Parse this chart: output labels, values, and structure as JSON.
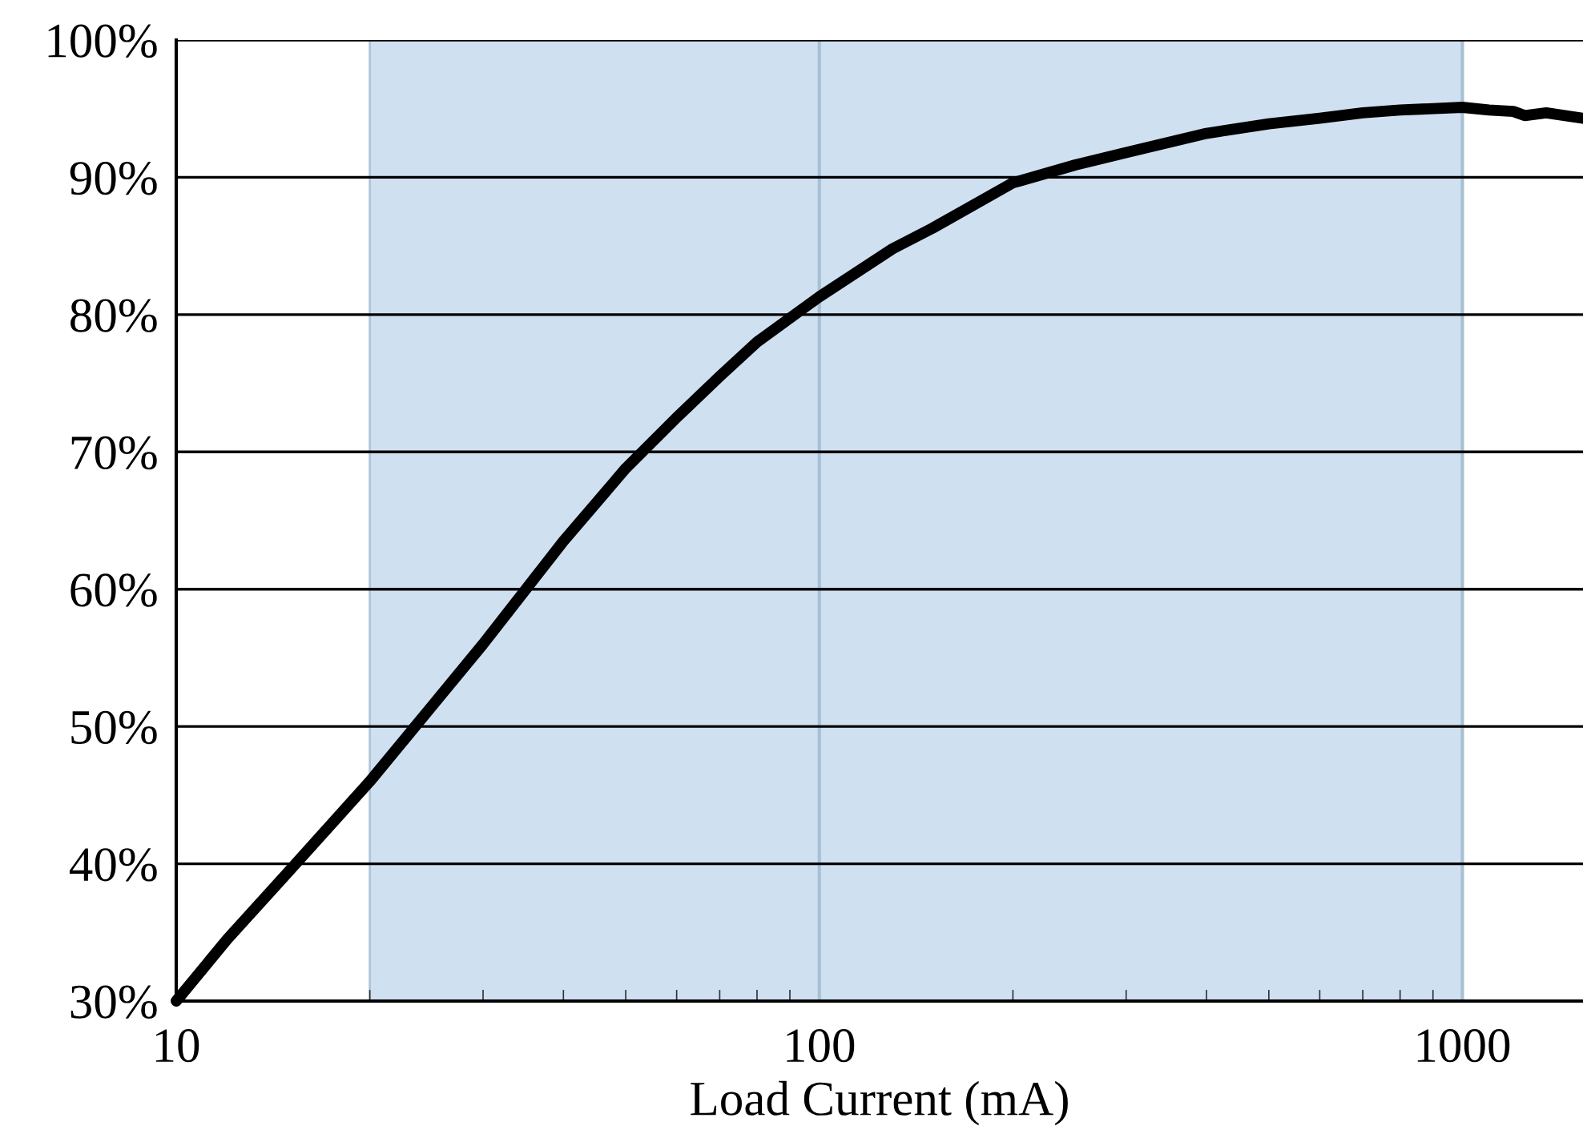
{
  "chart_data": {
    "type": "line",
    "xlabel": "Load Current (mA)",
    "log": "x",
    "x": [
      10,
      12,
      15,
      20,
      25,
      30,
      40,
      50,
      60,
      70,
      80,
      100,
      130,
      150,
      200,
      250,
      300,
      400,
      500,
      600,
      700,
      800,
      1000,
      1100,
      1200,
      1250,
      1350,
      1540
    ],
    "series": [
      {
        "color": "#000000",
        "values": [
          30,
          34.5,
          39.5,
          46,
          51.5,
          56,
          63.5,
          68.8,
          72.5,
          75.5,
          78,
          81.3,
          84.8,
          86.3,
          89.6,
          90.9,
          91.8,
          93.2,
          93.9,
          94.3,
          94.7,
          94.9,
          95.1,
          94.9,
          94.8,
          94.5,
          94.7,
          94.3
        ]
      }
    ],
    "xlim": [
      10,
      1540
    ],
    "xticks": [
      10,
      100,
      1000
    ],
    "ylim": [
      30,
      100
    ],
    "yticks": [
      {
        "value": 30,
        "label": "30%"
      },
      {
        "value": 40,
        "label": "40%"
      },
      {
        "value": 50,
        "label": "50%"
      },
      {
        "value": 60,
        "label": "60%"
      },
      {
        "value": 70,
        "label": "70%"
      },
      {
        "value": 80,
        "label": "80%"
      },
      {
        "value": 90,
        "label": "90%"
      },
      {
        "value": 100,
        "label": "100%"
      }
    ],
    "bands": [
      {
        "axis": "x",
        "from": 20,
        "to": 1000,
        "color": "#cfe0f1"
      }
    ],
    "grid": true,
    "marker": "none",
    "line_style": "solid"
  }
}
